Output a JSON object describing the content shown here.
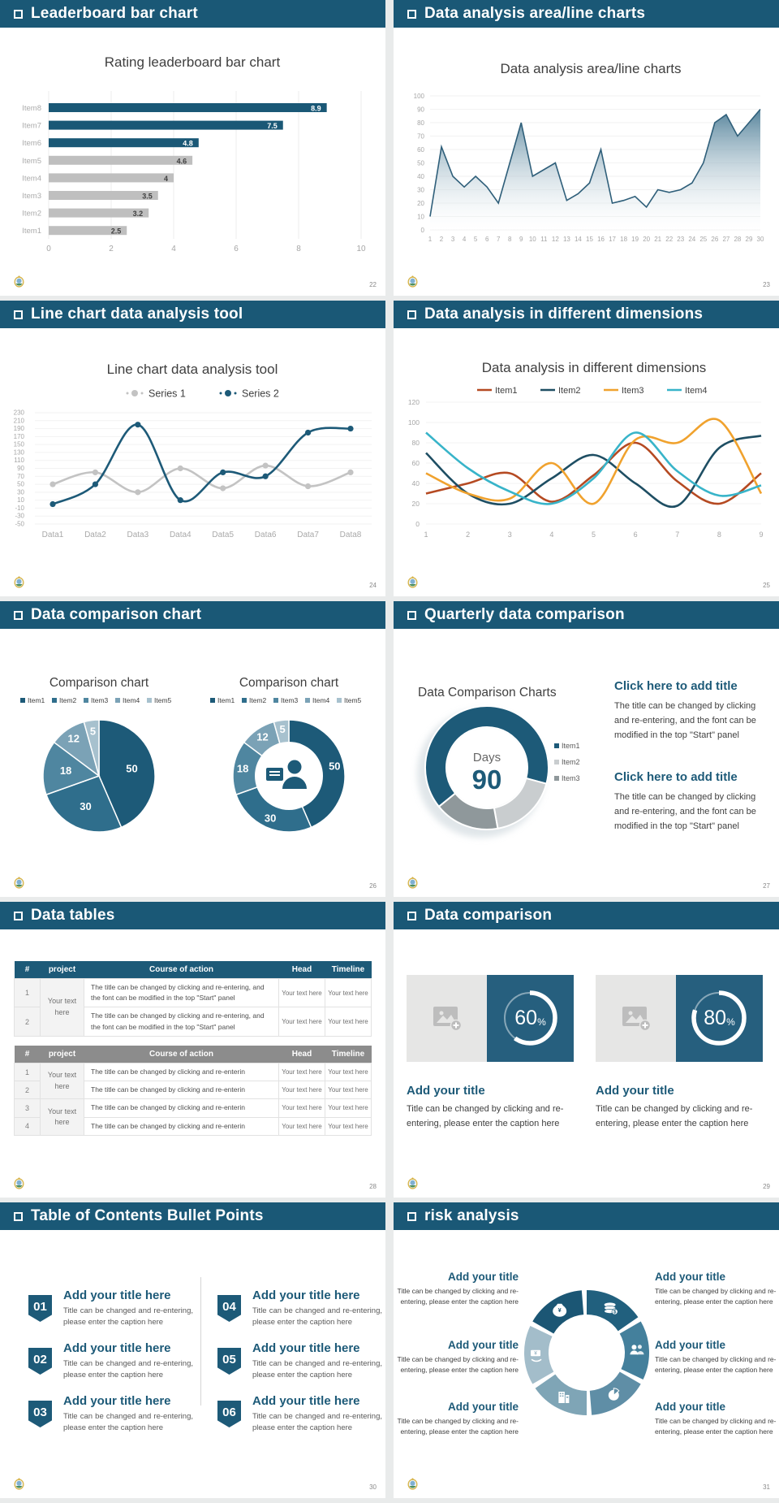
{
  "palette": {
    "header_teal": "#1a5876",
    "accent_teal": "#1d5a78",
    "bar_gray": "#bfbfbf",
    "gutter": "#e9ebeb",
    "card_teal": "#265f7e"
  },
  "slides": [
    {
      "title": "Leaderboard bar chart",
      "page": "22"
    },
    {
      "title": "Data analysis area/line charts",
      "page": "23"
    },
    {
      "title": "Line chart data analysis tool",
      "page": "24"
    },
    {
      "title": "Data analysis in different dimensions",
      "page": "25"
    },
    {
      "title": "Data comparison chart",
      "page": "26"
    },
    {
      "title": "Quarterly data comparison",
      "page": "27",
      "heading": "Data Comparison Charts",
      "blocks": [
        {
          "title": "Click here to add title",
          "body": "The title can be changed by clicking and re-entering, and the font can be modified in the top \"Start\" panel"
        },
        {
          "title": "Click here to add title",
          "body": "The title can be changed by clicking and re-entering, and the font can be modified in the top \"Start\" panel"
        }
      ]
    },
    {
      "title": "Data tables",
      "page": "28",
      "table1": {
        "headers": [
          "#",
          "project",
          "Course of action",
          "Head",
          "Timeline"
        ],
        "rows": [
          [
            "1",
            "Your text here",
            "The title can be changed by clicking and re-entering, and the font can be modified in the top \"Start\" panel",
            "Your text here",
            "Your text here"
          ],
          [
            "2",
            "",
            "The title can be changed by clicking and re-entering, and the font can be modified in the top \"Start\" panel",
            "Your text here",
            "Your text here"
          ]
        ]
      },
      "table2": {
        "headers": [
          "#",
          "project",
          "Course of action",
          "Head",
          "Timeline"
        ],
        "rows": [
          [
            "1",
            "Your text here",
            "The title can be changed by clicking and re-enterin",
            "Your text here",
            "Your text here"
          ],
          [
            "2",
            "",
            "The title can be changed by clicking and re-enterin",
            "Your text here",
            "Your text here"
          ],
          [
            "3",
            "Your text here",
            "The title can be changed by clicking and re-enterin",
            "Your text here",
            "Your text here"
          ],
          [
            "4",
            "",
            "The title can be changed by clicking and re-enterin",
            "Your text here",
            "Your text here"
          ]
        ]
      }
    },
    {
      "title": "Data comparison",
      "page": "29",
      "cards": [
        {
          "percent": 60,
          "title": "Add your title",
          "caption": "Title can be changed by clicking and re-entering, please enter the caption here"
        },
        {
          "percent": 80,
          "title": "Add your title",
          "caption": "Title can be changed by clicking and re-entering, please enter the caption here"
        }
      ]
    },
    {
      "title": "Table of Contents Bullet Points",
      "page": "30",
      "items": [
        {
          "num": "01",
          "title": "Add your title here",
          "caption": "Title can be changed and re-entering, please enter the caption here"
        },
        {
          "num": "02",
          "title": "Add your title here",
          "caption": "Title can be changed and re-entering, please enter the caption here"
        },
        {
          "num": "03",
          "title": "Add your title here",
          "caption": "Title can be changed and re-entering, please enter the caption here"
        },
        {
          "num": "04",
          "title": "Add your title here",
          "caption": "Title can be changed and re-entering, please enter the caption here"
        },
        {
          "num": "05",
          "title": "Add your title here",
          "caption": "Title can be changed and re-entering, please enter the caption here"
        },
        {
          "num": "06",
          "title": "Add your title here",
          "caption": "Title can be changed and re-entering, please enter the caption here"
        }
      ]
    },
    {
      "title": "risk analysis",
      "page": "31",
      "blocks": [
        {
          "title": "Add your title",
          "caption": "Title can be changed by clicking and re-entering, please enter the caption here"
        },
        {
          "title": "Add your title",
          "caption": "Title can be changed by clicking and re-entering, please enter the caption here"
        },
        {
          "title": "Add your title",
          "caption": "Title can be changed by clicking and re-entering, please enter the caption here"
        },
        {
          "title": "Add your title",
          "caption": "Title can be changed by clicking and re-entering, please enter the caption here"
        },
        {
          "title": "Add your title",
          "caption": "Title can be changed by clicking and re-entering, please enter the caption here"
        },
        {
          "title": "Add your title",
          "caption": "Title can be changed by clicking and re-entering, please enter the caption here"
        }
      ],
      "icons": [
        "coins-icon",
        "people-icon",
        "pie-chart-icon",
        "building-icon",
        "payment-icon",
        "moneybag-icon"
      ]
    }
  ],
  "chart_data": [
    {
      "type": "bar",
      "slide": 0,
      "orientation": "horizontal",
      "title": "Rating leaderboard bar chart",
      "categories": [
        "Item1",
        "Item2",
        "Item3",
        "Item4",
        "Item5",
        "Item6",
        "Item7",
        "Item8"
      ],
      "values": [
        2.5,
        3.2,
        3.5,
        4,
        4.6,
        4.8,
        7.5,
        8.9
      ],
      "highlighted": [
        false,
        false,
        false,
        false,
        false,
        true,
        true,
        true
      ],
      "xlim": [
        0,
        10
      ],
      "xticks": [
        0,
        2,
        4,
        6,
        8,
        10
      ],
      "bar_color": "#bfbfbf",
      "highlight_color": "#1a5876"
    },
    {
      "type": "area",
      "slide": 1,
      "title": "Data analysis area/line charts",
      "x": [
        1,
        2,
        3,
        4,
        5,
        6,
        7,
        8,
        9,
        10,
        11,
        12,
        13,
        14,
        15,
        16,
        17,
        18,
        19,
        20,
        21,
        22,
        23,
        24,
        25,
        26,
        27,
        28,
        29,
        30
      ],
      "values": [
        10,
        62,
        40,
        32,
        40,
        32,
        20,
        50,
        80,
        40,
        45,
        50,
        22,
        27,
        35,
        60,
        20,
        22,
        25,
        17,
        30,
        28,
        30,
        35,
        50,
        80,
        86,
        70,
        80,
        90
      ],
      "ylim": [
        0,
        100
      ],
      "yticks": [
        0,
        10,
        20,
        30,
        40,
        50,
        60,
        70,
        80,
        90,
        100
      ],
      "line_color": "#2f5f7a"
    },
    {
      "type": "line",
      "slide": 2,
      "title": "Line chart data analysis tool",
      "categories": [
        "Data1",
        "Data2",
        "Data3",
        "Data4",
        "Data5",
        "Data6",
        "Data7",
        "Data8"
      ],
      "ylim": [
        -50,
        230
      ],
      "ytick_step": 20,
      "series": [
        {
          "name": "Series 1",
          "color": "#c3c3c3",
          "values": [
            50,
            80,
            30,
            90,
            40,
            97,
            45,
            80
          ]
        },
        {
          "name": "Series 2",
          "color": "#1d5a78",
          "values": [
            0,
            50,
            200,
            10,
            80,
            70,
            180,
            190
          ]
        }
      ]
    },
    {
      "type": "line",
      "slide": 3,
      "title": "Data analysis in different dimensions",
      "x": [
        1,
        2,
        3,
        4,
        5,
        6,
        7,
        8,
        9
      ],
      "ylim": [
        0,
        120
      ],
      "ytick_step": 20,
      "series": [
        {
          "name": "Item1",
          "color": "#b54a22",
          "values": [
            30,
            40,
            50,
            22,
            48,
            80,
            42,
            20,
            50
          ]
        },
        {
          "name": "Item2",
          "color": "#1e4e63",
          "values": [
            70,
            30,
            20,
            45,
            68,
            40,
            18,
            75,
            87
          ]
        },
        {
          "name": "Item3",
          "color": "#f0a22e",
          "values": [
            50,
            30,
            25,
            60,
            20,
            83,
            80,
            102,
            30
          ]
        },
        {
          "name": "Item4",
          "color": "#38b4c9",
          "values": [
            90,
            55,
            32,
            20,
            45,
            90,
            52,
            28,
            38
          ]
        }
      ]
    },
    {
      "type": "pie",
      "slide": 4,
      "title": "Comparison chart",
      "labels": [
        "Item1",
        "Item2",
        "Item3",
        "Item4",
        "Item5"
      ],
      "values": [
        50,
        30,
        18,
        12,
        5
      ],
      "colors": [
        "#1d5a78",
        "#2f6e8c",
        "#4f86a0",
        "#7ba2b6",
        "#a7c1ce"
      ]
    },
    {
      "type": "donut",
      "slide": 4,
      "title": "Comparison chart",
      "labels": [
        "Item1",
        "Item2",
        "Item3",
        "Item4",
        "Item5"
      ],
      "values": [
        50,
        30,
        18,
        12,
        5
      ],
      "colors": [
        "#1d5a78",
        "#2f6e8c",
        "#4f86a0",
        "#7ba2b6",
        "#a7c1ce"
      ],
      "center_icon": "presenter-icon"
    },
    {
      "type": "donut",
      "slide": 5,
      "title": "Data Comparison Charts",
      "labels": [
        "Item1",
        "Item2",
        "Item3"
      ],
      "values": [
        65,
        18,
        17
      ],
      "colors": [
        "#1d5a78",
        "#c9cdcf",
        "#8f989b"
      ],
      "center_label": "Days",
      "center_value": "90",
      "start_angle_deg": 231
    },
    {
      "type": "progress-ring",
      "slide": 7,
      "values": [
        60,
        80
      ],
      "unit": "%",
      "ring_color": "#ffffff",
      "panel_color": "#265f7e"
    }
  ]
}
